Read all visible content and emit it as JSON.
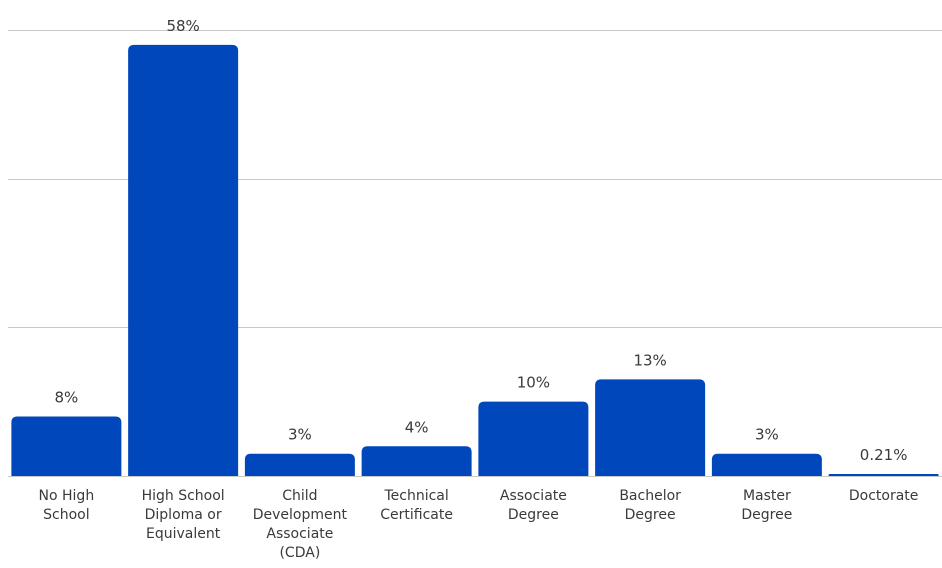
{
  "chart_data": {
    "type": "bar",
    "categories": [
      [
        "No High",
        "School"
      ],
      [
        "High School",
        "Diploma or",
        "Equivalent"
      ],
      [
        "Child",
        "Development",
        "Associate",
        "(CDA)"
      ],
      [
        "Technical",
        "Certificate"
      ],
      [
        "Associate",
        "Degree"
      ],
      [
        "Bachelor",
        "Degree"
      ],
      [
        "Master",
        "Degree"
      ],
      [
        "Doctorate"
      ]
    ],
    "values": [
      8,
      58,
      3,
      4,
      10,
      13,
      3,
      0.21
    ],
    "value_labels": [
      "8%",
      "58%",
      "3%",
      "4%",
      "10%",
      "13%",
      "3%",
      "0.21%"
    ],
    "ylim": [
      0,
      60
    ],
    "grid": true,
    "bar_color": "#0047bb",
    "title": "",
    "xlabel": "",
    "ylabel": ""
  }
}
